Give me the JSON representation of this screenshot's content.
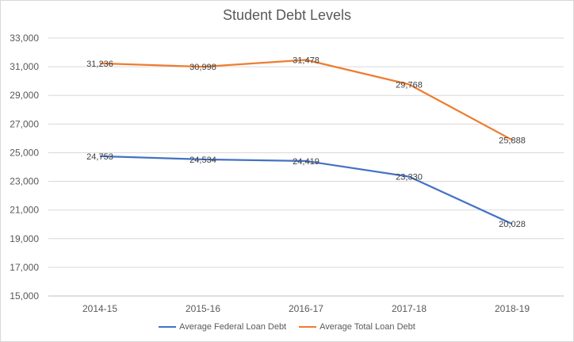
{
  "chart_data": {
    "type": "line",
    "title": "Student Debt Levels",
    "categories": [
      "2014-15",
      "2015-16",
      "2016-17",
      "2017-18",
      "2018-19"
    ],
    "ylim": [
      15000,
      33000
    ],
    "yticks": [
      "15,000",
      "17,000",
      "19,000",
      "21,000",
      "23,000",
      "25,000",
      "27,000",
      "29,000",
      "31,000",
      "33,000"
    ],
    "grid": true,
    "legend_position": "bottom",
    "series": [
      {
        "name": "Average Federal Loan Debt",
        "color": "#4472c4",
        "values": [
          24753,
          24534,
          24419,
          23330,
          20028
        ],
        "labels": [
          "24,753",
          "24,534",
          "24,419",
          "23,330",
          "20,028"
        ]
      },
      {
        "name": "Average Total Loan Debt",
        "color": "#ed7d31",
        "values": [
          31236,
          30998,
          31478,
          29768,
          25888
        ],
        "labels": [
          "31,236",
          "30,998",
          "31,478",
          "29,768",
          "25,888"
        ]
      }
    ]
  }
}
